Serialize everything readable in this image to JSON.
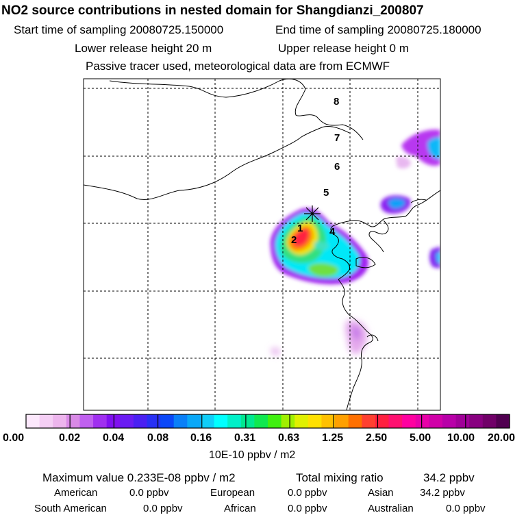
{
  "title": "NO2 source contributions in nested domain for Shangdianzi_200807",
  "header": {
    "start_label": "Start time of sampling 20080725.150000",
    "end_label": "End time of sampling 20080725.180000",
    "lower_label": "Lower release height   20 m",
    "upper_label": "Upper release height    0 m",
    "tracer_note": "Passive tracer used, meteorological data are from ECMWF"
  },
  "map": {
    "track_point_labels": [
      "1",
      "2",
      "4",
      "5",
      "6",
      "7",
      "8"
    ],
    "station_marker": "star-cross"
  },
  "colorbar": {
    "tick_labels": [
      "0.00",
      "0.02",
      "0.04",
      "0.08",
      "0.16",
      "0.31",
      "0.63",
      "1.25",
      "2.50",
      "5.00",
      "10.00",
      "20.00"
    ],
    "unit": "10E-10 ppbv / m2",
    "colors": [
      "#fce8fc",
      "#f5cff5",
      "#edb5ed",
      "#d98ae6",
      "#c060f0",
      "#a030f0",
      "#8010f0",
      "#6a1cf2",
      "#4a20f2",
      "#2830f4",
      "#0a48f8",
      "#0a80f8",
      "#0aa8f8",
      "#10cef8",
      "#00ffff",
      "#00f0c8",
      "#00e890",
      "#10e850",
      "#40f010",
      "#a0f000",
      "#e0f000",
      "#ffe000",
      "#ffc000",
      "#ffa000",
      "#ff7000",
      "#ff4030",
      "#ff2040",
      "#ff1070",
      "#ff00a0",
      "#e800a8",
      "#d000a8",
      "#b800a8",
      "#a00098",
      "#880080",
      "#700068",
      "#500050"
    ]
  },
  "stats": {
    "max_label": "Maximum value  0.233E-08 ppbv / m2",
    "total_label": "Total mixing ratio",
    "total_value": "34.2 ppbv",
    "regions": [
      {
        "name": "American",
        "value": "0.0 ppbv"
      },
      {
        "name": "European",
        "value": "0.0 ppbv"
      },
      {
        "name": "Asian",
        "value": "34.2 ppbv"
      },
      {
        "name": "South American",
        "value": "0.0 ppbv"
      },
      {
        "name": "African",
        "value": "0.0 ppbv"
      },
      {
        "name": "Australian",
        "value": "0.0 ppbv"
      }
    ]
  }
}
